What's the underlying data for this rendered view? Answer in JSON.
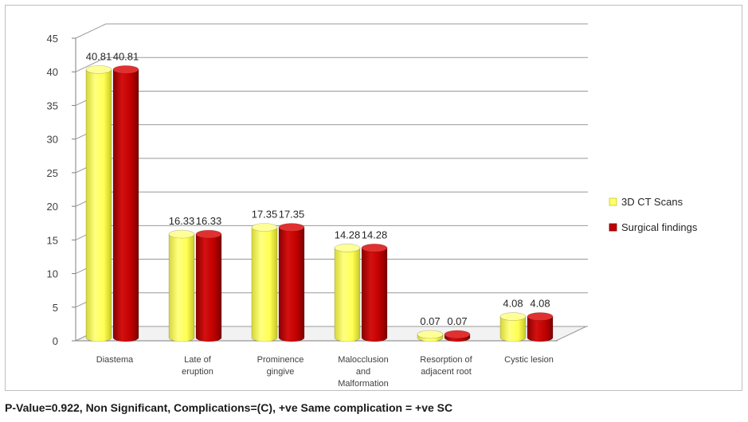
{
  "chart_data": {
    "type": "bar",
    "categories": [
      [
        "Diastema"
      ],
      [
        "Late of",
        "eruption"
      ],
      [
        "Prominence",
        "gingive"
      ],
      [
        "Malocclusion",
        "and",
        "Malformation"
      ],
      [
        "Resorption of",
        "adjacent root"
      ],
      [
        "Cystic lesion"
      ]
    ],
    "series": [
      {
        "name": "3D CT Scans",
        "color": "#ffff66",
        "values": [
          40.81,
          16.33,
          17.35,
          14.28,
          0.07,
          4.08
        ],
        "labels": [
          "40.81",
          "16.33",
          "17.35",
          "14.28",
          "0.07",
          "4.08"
        ]
      },
      {
        "name": "Surgical findings",
        "color": "#c00000",
        "values": [
          40.81,
          16.33,
          17.35,
          14.28,
          0.07,
          4.08
        ],
        "labels": [
          "40.81",
          "16.33",
          "17.35",
          "14.28",
          "0.07",
          "4.08"
        ]
      }
    ],
    "ylim": [
      0,
      45
    ],
    "yticks": [
      "0",
      "5",
      "10",
      "15",
      "20",
      "25",
      "30",
      "35",
      "40",
      "45"
    ],
    "grid": true,
    "legend_position": "right",
    "style": "3d-cylinder"
  },
  "footnote": "P-Value=0.922, Non Significant,  Complications=(C),  +ve Same complication = +ve SC"
}
